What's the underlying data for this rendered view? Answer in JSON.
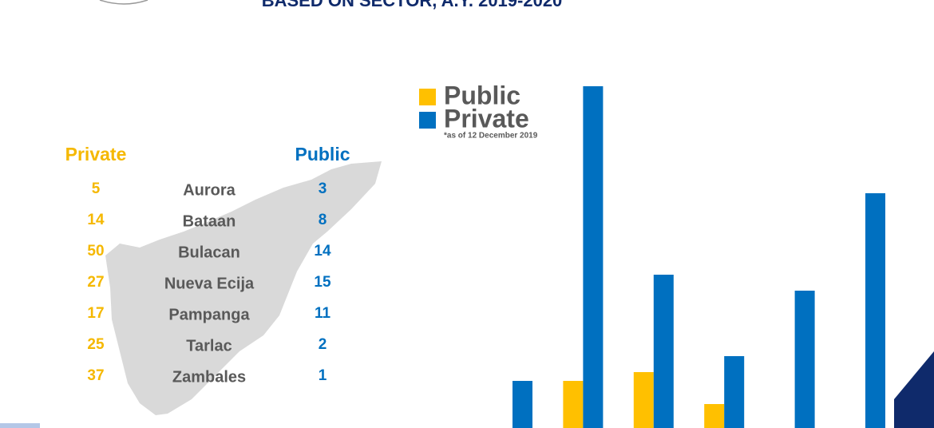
{
  "header": {
    "title": "BASED ON SECTOR, A.Y. 2019-2020"
  },
  "table": {
    "columns": [
      "Private",
      "Public"
    ],
    "rows": [
      [
        "Aurora",
        5,
        3
      ],
      [
        "Bataan",
        14,
        8
      ],
      [
        "Bulacan",
        50,
        14
      ],
      [
        "Nueva Ecija",
        27,
        15
      ],
      [
        "Pampanga",
        17,
        11
      ],
      [
        "Tarlac",
        25,
        2
      ],
      [
        "Zambales",
        37,
        1
      ]
    ]
  },
  "chart_data": {
    "type": "bar",
    "note": "*as of 12 December 2019",
    "categories": [
      null,
      null,
      null,
      null,
      null,
      null
    ],
    "series": [
      {
        "name": "Public",
        "color": "#ffc000",
        "values": [
          0,
          59,
          70,
          30,
          0,
          0
        ]
      },
      {
        "name": "Private",
        "color": "#0070c0",
        "values": [
          59,
          428,
          192,
          90,
          172,
          294
        ]
      }
    ]
  }
}
